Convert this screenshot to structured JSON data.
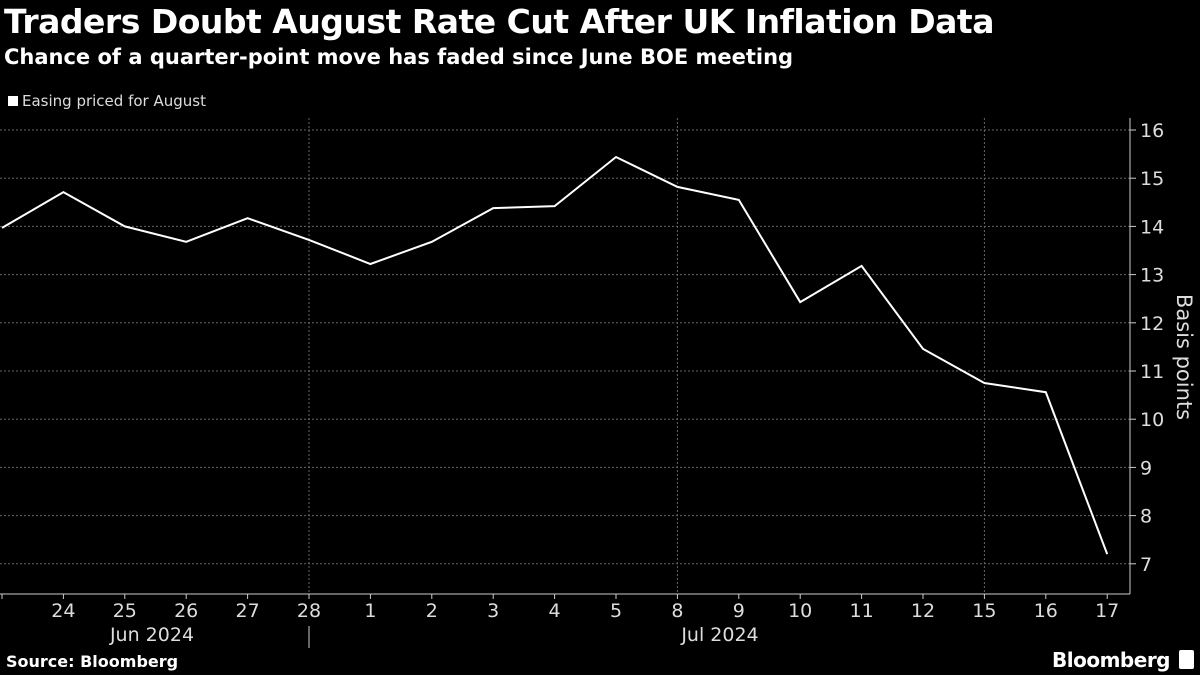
{
  "title": "Traders Doubt August Rate Cut After UK Inflation Data",
  "subtitle": "Chance of a quarter-point move has faded since June BOE meeting",
  "source": "Source: Bloomberg",
  "brand": "Bloomberg",
  "chart_data": {
    "type": "line",
    "legend": "Easing priced for August",
    "legend_position": "top-left",
    "ylabel": "Basis points",
    "ylim": [
      6.4,
      16.4
    ],
    "yticks": [
      7,
      8,
      9,
      10,
      11,
      12,
      13,
      14,
      15,
      16
    ],
    "grid": true,
    "x": [
      "2024-06-21",
      "2024-06-24",
      "2024-06-25",
      "2024-06-26",
      "2024-06-27",
      "2024-06-28",
      "2024-07-01",
      "2024-07-02",
      "2024-07-03",
      "2024-07-04",
      "2024-07-05",
      "2024-07-08",
      "2024-07-09",
      "2024-07-10",
      "2024-07-11",
      "2024-07-12",
      "2024-07-15",
      "2024-07-16",
      "2024-07-17"
    ],
    "xtick_labels": [
      "",
      "24",
      "25",
      "26",
      "27",
      "28",
      "1",
      "2",
      "3",
      "4",
      "5",
      "8",
      "9",
      "10",
      "11",
      "12",
      "15",
      "16",
      "17"
    ],
    "month_labels": [
      "Jun 2024",
      "Jul 2024"
    ],
    "series": [
      {
        "name": "Easing priced for August",
        "color": "#ffffff",
        "values": [
          13.97,
          14.71,
          14.0,
          13.68,
          14.17,
          13.72,
          13.22,
          13.68,
          14.38,
          14.42,
          15.44,
          14.82,
          14.55,
          12.43,
          13.18,
          11.46,
          10.75,
          10.56,
          7.2
        ]
      }
    ]
  }
}
